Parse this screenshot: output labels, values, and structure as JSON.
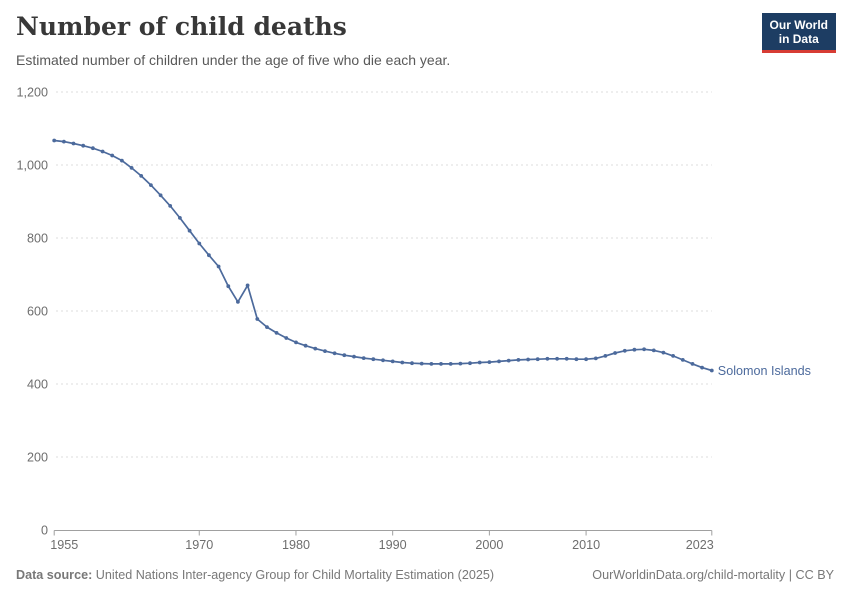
{
  "header": {
    "title": "Number of child deaths",
    "subtitle": "Estimated number of children under the age of five who die each year.",
    "logo_line1": "Our World",
    "logo_line2": "in Data"
  },
  "footer": {
    "source_label": "Data source:",
    "source_text": "United Nations Inter-agency Group for Child Mortality Estimation (2025)",
    "link_text": "OurWorldinData.org/child-mortality | CC BY"
  },
  "colors": {
    "series_blue": "#4c6a9c",
    "grid": "#dcdcdc",
    "axis": "#a0a0a0",
    "tick_text": "#6e6e6e",
    "logo_navy": "#1d3d63",
    "logo_red": "#d73c34"
  },
  "chart_data": {
    "type": "line",
    "title": "Number of child deaths",
    "xlabel": "",
    "ylabel": "",
    "xlim": [
      1955,
      2023
    ],
    "ylim": [
      0,
      1200
    ],
    "grid": "horizontal-dashed",
    "legend_position": "end-of-line-label",
    "x_ticks": [
      1955,
      1970,
      1980,
      1990,
      2000,
      2010,
      2023
    ],
    "y_ticks": [
      0,
      200,
      400,
      600,
      800,
      1000,
      1200
    ],
    "y_tick_labels": [
      "0",
      "200",
      "400",
      "600",
      "800",
      "1,000",
      "1,200"
    ],
    "series": [
      {
        "name": "Solomon Islands",
        "color": "#4c6a9c",
        "x": [
          1955,
          1956,
          1957,
          1958,
          1959,
          1960,
          1961,
          1962,
          1963,
          1964,
          1965,
          1966,
          1967,
          1968,
          1969,
          1970,
          1971,
          1972,
          1973,
          1974,
          1975,
          1976,
          1977,
          1978,
          1979,
          1980,
          1981,
          1982,
          1983,
          1984,
          1985,
          1986,
          1987,
          1988,
          1989,
          1990,
          1991,
          1992,
          1993,
          1994,
          1995,
          1996,
          1997,
          1998,
          1999,
          2000,
          2001,
          2002,
          2003,
          2004,
          2005,
          2006,
          2007,
          2008,
          2009,
          2010,
          2011,
          2012,
          2013,
          2014,
          2015,
          2016,
          2017,
          2018,
          2019,
          2020,
          2021,
          2022,
          2023
        ],
        "values": [
          1067,
          1064,
          1059,
          1053,
          1046,
          1037,
          1026,
          1012,
          992,
          970,
          945,
          917,
          888,
          855,
          820,
          785,
          753,
          722,
          668,
          625,
          670,
          578,
          556,
          540,
          526,
          514,
          505,
          497,
          490,
          484,
          479,
          475,
          471,
          468,
          465,
          462,
          459,
          457,
          456,
          455,
          455,
          455,
          456,
          457,
          459,
          460,
          462,
          464,
          466,
          467,
          468,
          469,
          469,
          469,
          468,
          468,
          470,
          477,
          485,
          491,
          494,
          495,
          492,
          486,
          477,
          466,
          455,
          445,
          437
        ]
      }
    ]
  }
}
